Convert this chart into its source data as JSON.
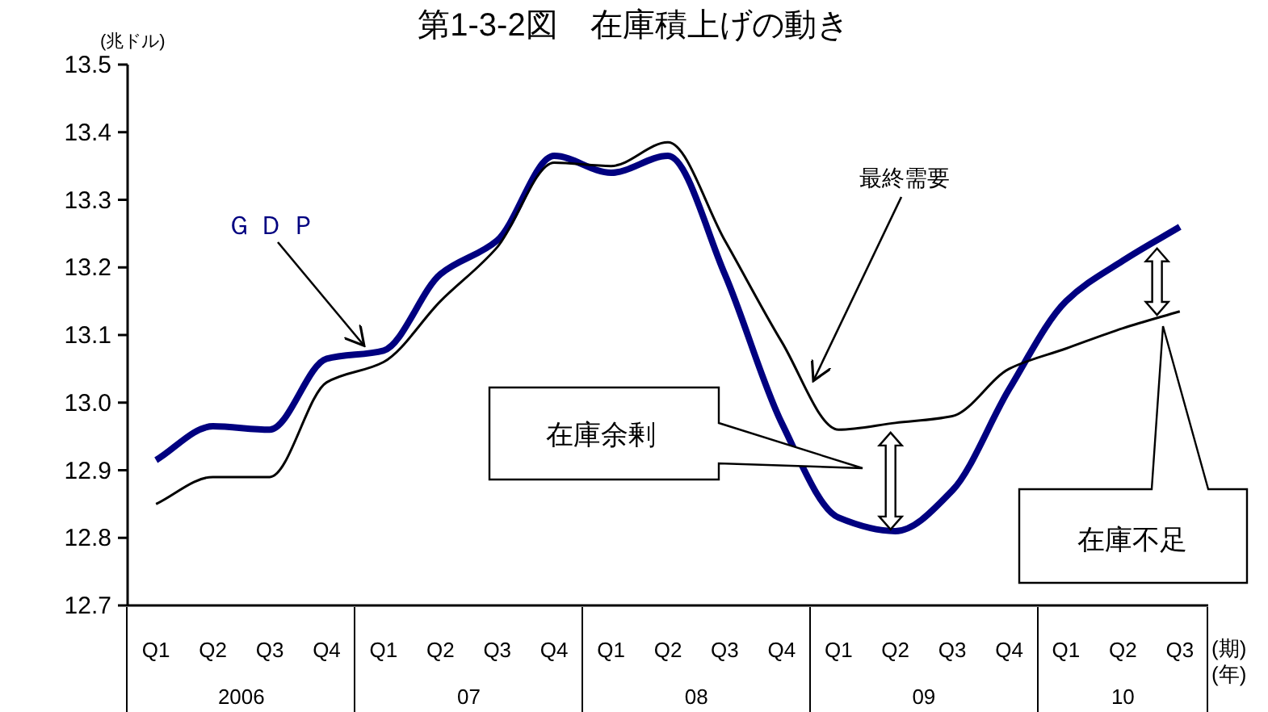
{
  "chart_data": {
    "type": "line",
    "title": "第1-3-2図　在庫積上げの動き",
    "ylabel": "(兆ドル)",
    "categories": [
      "Q1",
      "Q2",
      "Q3",
      "Q4",
      "Q1",
      "Q2",
      "Q3",
      "Q4",
      "Q1",
      "Q2",
      "Q3",
      "Q4",
      "Q1",
      "Q2",
      "Q3",
      "Q4",
      "Q1",
      "Q2",
      "Q3"
    ],
    "series": [
      {
        "name": "ＧＤＰ",
        "color": "#000080",
        "values": [
          12.915,
          12.965,
          12.96,
          13.065,
          13.077,
          13.19,
          13.24,
          13.365,
          13.34,
          13.365,
          13.19,
          12.97,
          12.83,
          12.81,
          12.87,
          13.02,
          13.15,
          13.21,
          13.26
        ]
      },
      {
        "name": "最終需要",
        "color": "#000000",
        "values": [
          12.85,
          12.89,
          12.89,
          13.03,
          13.06,
          13.15,
          13.23,
          13.355,
          13.35,
          13.385,
          13.24,
          13.09,
          12.96,
          12.97,
          12.98,
          13.05,
          13.08,
          13.11,
          13.135
        ]
      }
    ],
    "ylim": [
      12.7,
      13.5
    ],
    "yticks": [
      {
        "value": 12.7,
        "label": "12.7"
      },
      {
        "value": 12.8,
        "label": "12.8"
      },
      {
        "value": 12.9,
        "label": "12.9"
      },
      {
        "value": 13.0,
        "label": "13.0"
      },
      {
        "value": 13.1,
        "label": "13.1"
      },
      {
        "value": 13.2,
        "label": "13.2"
      },
      {
        "value": 13.3,
        "label": "13.3"
      },
      {
        "value": 13.4,
        "label": "13.4"
      },
      {
        "value": 13.5,
        "label": "13.5"
      }
    ],
    "grid": false,
    "marker": "none",
    "line_style": "solid",
    "annotations": [
      "2006",
      "07",
      "08",
      "09",
      "10",
      "(期)",
      "(年)",
      "在庫余剰",
      "在庫不足"
    ]
  }
}
